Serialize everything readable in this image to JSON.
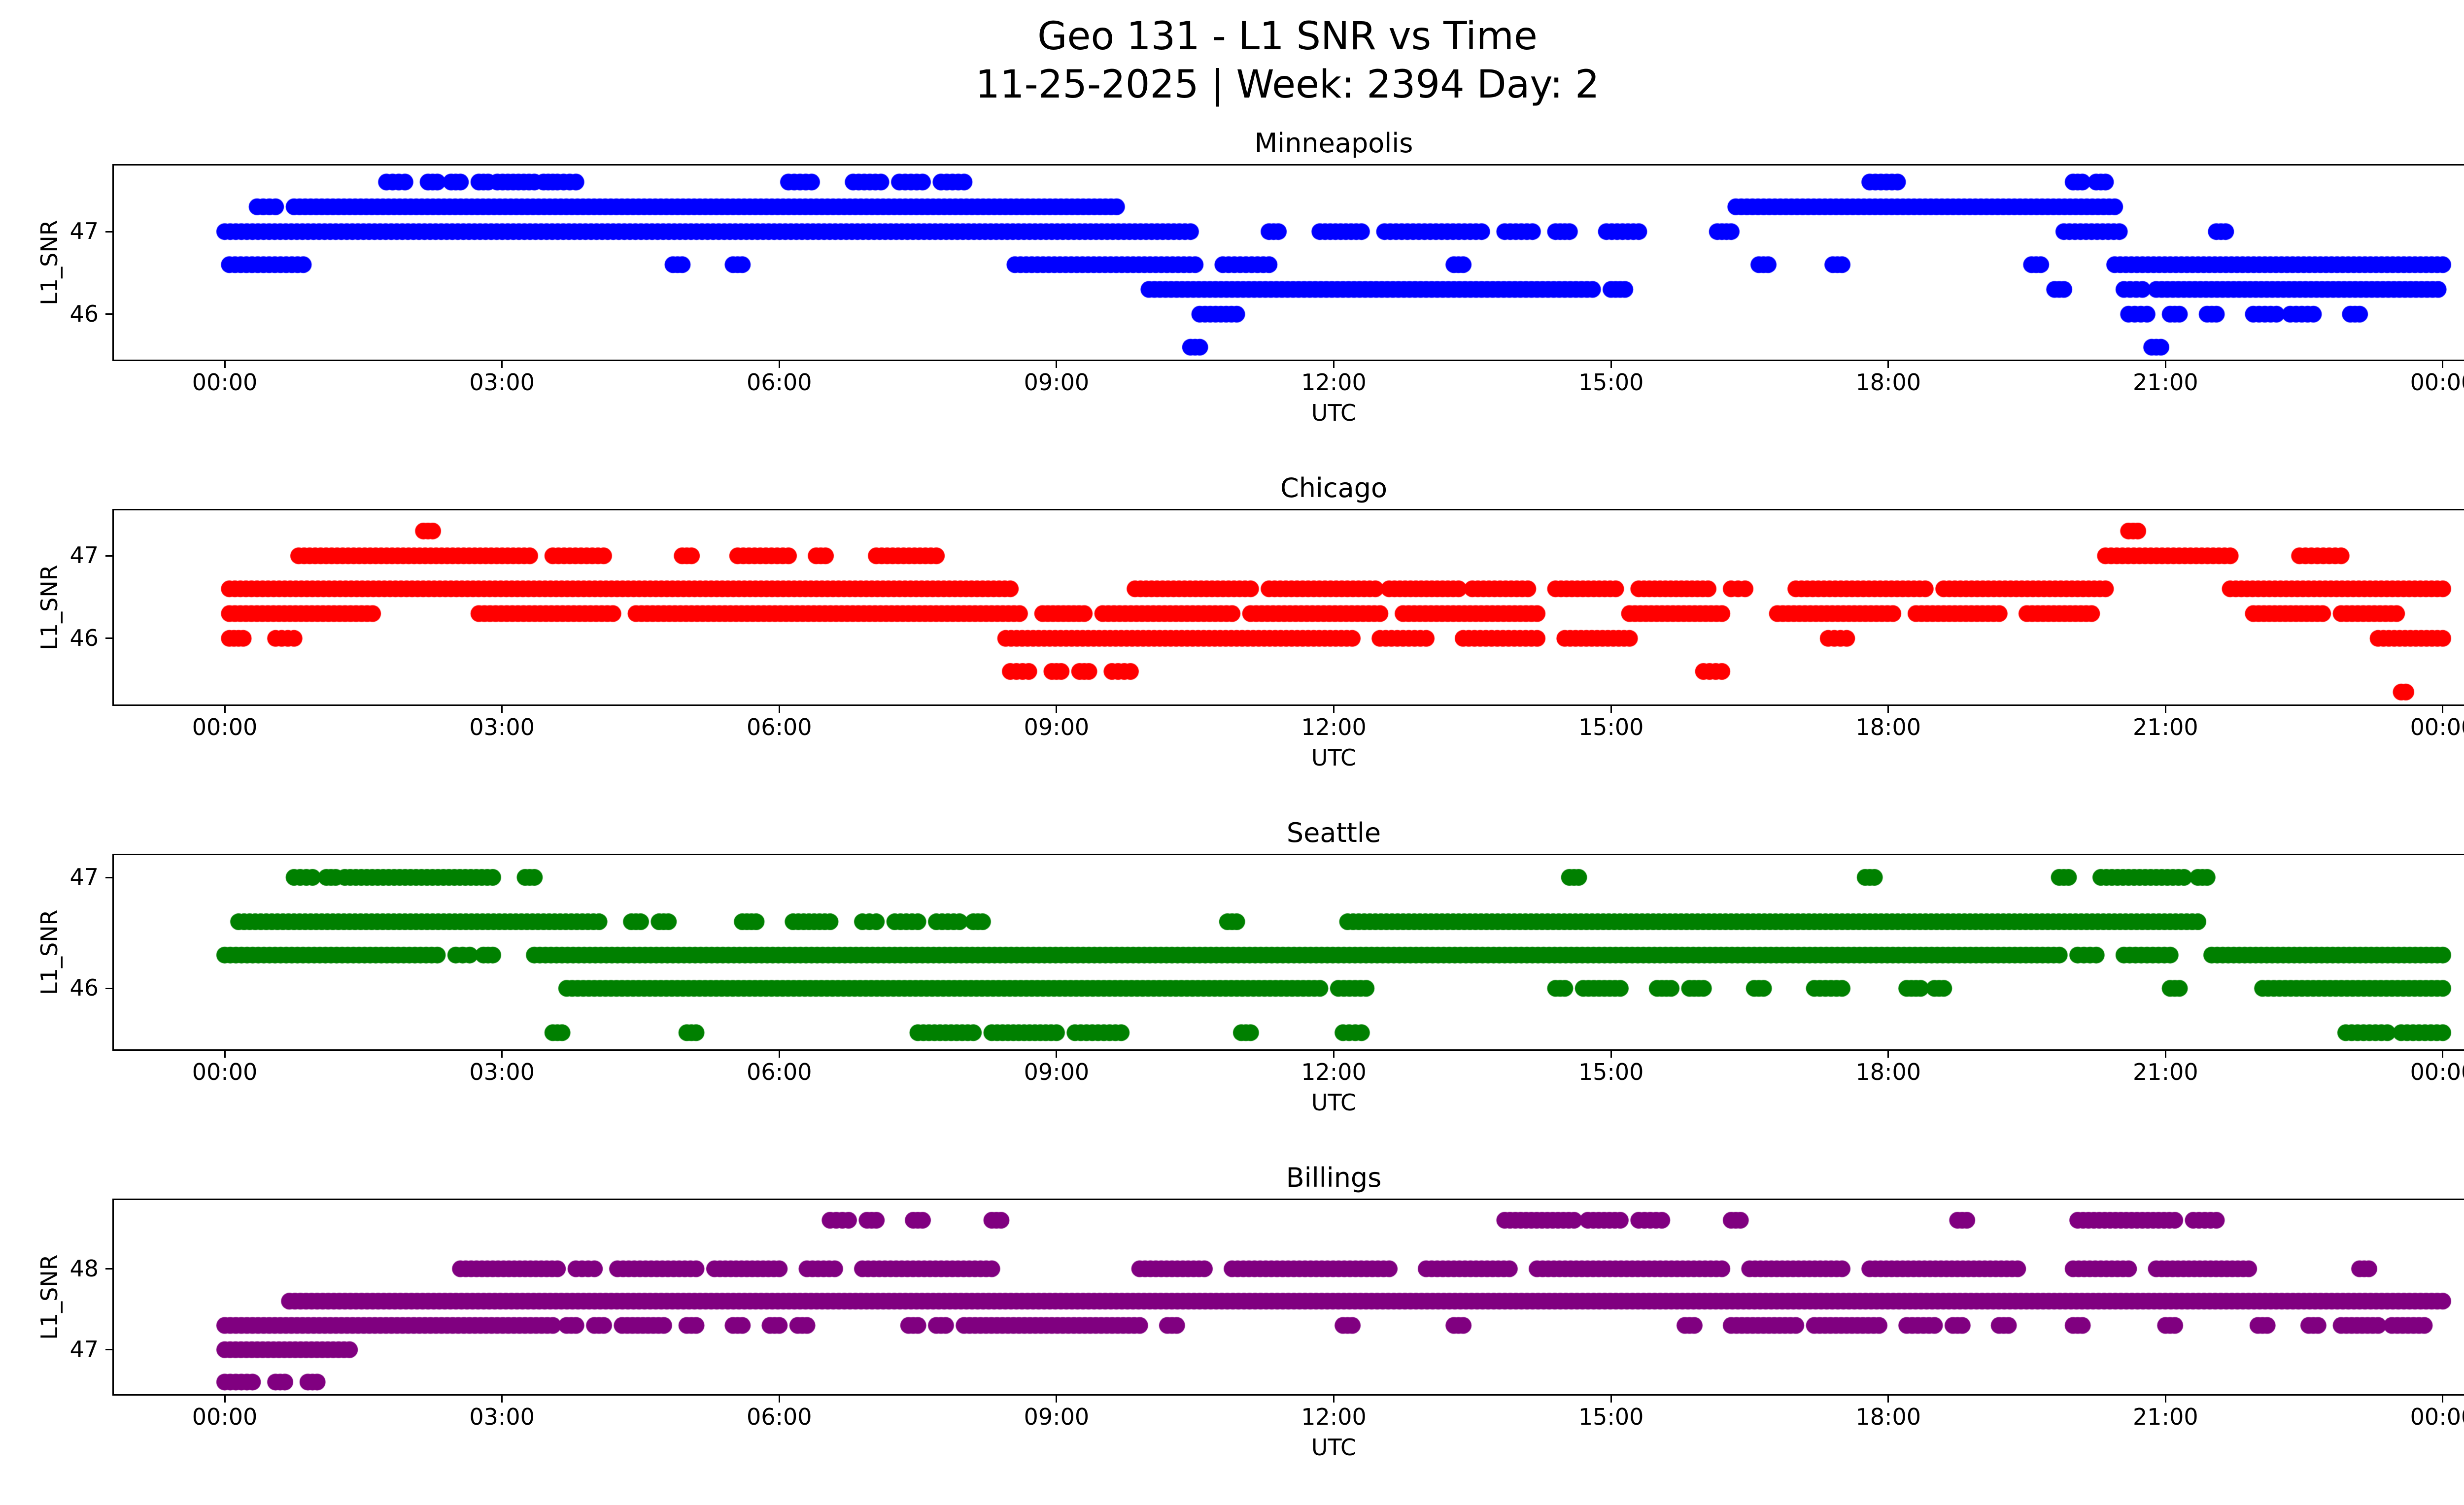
{
  "header": {
    "title_line1": "Geo 131 - L1 SNR vs Time",
    "title_line2": "11-25-2025 | Week: 2394 Day: 2"
  },
  "chart_data": [
    {
      "type": "scatter",
      "title": "Minneapolis",
      "color": "#0000ff",
      "xlabel": "UTC",
      "ylabel": "L1_SNR",
      "xlim": [
        -1.2,
        25.2
      ],
      "ylim": [
        45.45,
        47.8
      ],
      "x_tick_hours": [
        0,
        3,
        6,
        9,
        12,
        15,
        18,
        21,
        24
      ],
      "x_tick_labels": [
        "00:00",
        "03:00",
        "06:00",
        "09:00",
        "12:00",
        "15:00",
        "18:00",
        "21:00",
        "00:00"
      ],
      "y_ticks": [
        46,
        47
      ],
      "marker_radius_px": 17,
      "levels": [
        {
          "snr": 47.6,
          "segments": [
            [
              1.75,
              1.95
            ],
            [
              2.2,
              2.3
            ],
            [
              2.45,
              2.55
            ],
            [
              2.75,
              2.85
            ],
            [
              2.95,
              3.35
            ],
            [
              3.45,
              3.55
            ],
            [
              3.6,
              3.8
            ],
            [
              6.1,
              6.35
            ],
            [
              6.8,
              7.1
            ],
            [
              7.3,
              7.55
            ],
            [
              7.75,
              8.0
            ],
            [
              17.8,
              18.1
            ],
            [
              20.0,
              20.1
            ],
            [
              20.25,
              20.35
            ]
          ]
        },
        {
          "snr": 47.3,
          "segments": [
            [
              0.35,
              0.55
            ],
            [
              0.75,
              9.65
            ],
            [
              16.35,
              20.45
            ]
          ]
        },
        {
          "snr": 47.0,
          "segments": [
            [
              0.0,
              10.45
            ],
            [
              11.3,
              11.4
            ],
            [
              11.85,
              12.3
            ],
            [
              12.55,
              13.6
            ],
            [
              13.85,
              14.15
            ],
            [
              14.4,
              14.55
            ],
            [
              14.95,
              15.3
            ],
            [
              16.15,
              16.3
            ],
            [
              19.9,
              20.5
            ],
            [
              21.55,
              21.65
            ]
          ]
        },
        {
          "snr": 46.6,
          "segments": [
            [
              0.05,
              0.85
            ],
            [
              4.85,
              4.95
            ],
            [
              5.5,
              5.6
            ],
            [
              8.55,
              10.5
            ],
            [
              10.8,
              11.3
            ],
            [
              13.3,
              13.4
            ],
            [
              16.6,
              16.7
            ],
            [
              17.4,
              17.5
            ],
            [
              19.55,
              19.65
            ],
            [
              20.45,
              24.0
            ]
          ]
        },
        {
          "snr": 46.3,
          "segments": [
            [
              10.0,
              14.8
            ],
            [
              15.0,
              15.15
            ],
            [
              19.8,
              19.9
            ],
            [
              20.55,
              20.75
            ],
            [
              20.9,
              23.95
            ]
          ]
        },
        {
          "snr": 46.0,
          "segments": [
            [
              10.55,
              10.95
            ],
            [
              20.6,
              20.8
            ],
            [
              21.05,
              21.15
            ],
            [
              21.45,
              21.55
            ],
            [
              21.95,
              22.2
            ],
            [
              22.35,
              22.6
            ],
            [
              23.0,
              23.1
            ]
          ]
        },
        {
          "snr": 45.6,
          "segments": [
            [
              10.45,
              10.55
            ],
            [
              20.85,
              20.95
            ]
          ]
        }
      ]
    },
    {
      "type": "scatter",
      "title": "Chicago",
      "color": "#ff0000",
      "xlabel": "UTC",
      "ylabel": "L1_SNR",
      "xlim": [
        -1.2,
        25.2
      ],
      "ylim": [
        45.2,
        47.55
      ],
      "x_tick_hours": [
        0,
        3,
        6,
        9,
        12,
        15,
        18,
        21,
        24
      ],
      "x_tick_labels": [
        "00:00",
        "03:00",
        "06:00",
        "09:00",
        "12:00",
        "15:00",
        "18:00",
        "21:00",
        "00:00"
      ],
      "y_ticks": [
        46,
        47
      ],
      "marker_radius_px": 17,
      "levels": [
        {
          "snr": 47.3,
          "segments": [
            [
              2.15,
              2.25
            ],
            [
              20.6,
              20.7
            ]
          ]
        },
        {
          "snr": 47.0,
          "segments": [
            [
              0.8,
              3.3
            ],
            [
              3.55,
              4.1
            ],
            [
              4.95,
              5.05
            ],
            [
              5.55,
              6.1
            ],
            [
              6.4,
              6.5
            ],
            [
              7.05,
              7.7
            ],
            [
              20.35,
              21.7
            ],
            [
              22.45,
              22.9
            ]
          ]
        },
        {
          "snr": 46.6,
          "segments": [
            [
              0.05,
              8.5
            ],
            [
              9.85,
              11.1
            ],
            [
              11.3,
              12.45
            ],
            [
              12.6,
              13.35
            ],
            [
              13.5,
              14.1
            ],
            [
              14.4,
              15.05
            ],
            [
              15.3,
              16.05
            ],
            [
              16.3,
              16.45
            ],
            [
              17.0,
              18.4
            ],
            [
              18.6,
              20.35
            ],
            [
              21.7,
              24.0
            ]
          ]
        },
        {
          "snr": 46.3,
          "segments": [
            [
              0.05,
              1.6
            ],
            [
              2.75,
              4.2
            ],
            [
              4.45,
              8.6
            ],
            [
              8.85,
              9.3
            ],
            [
              9.5,
              10.9
            ],
            [
              11.1,
              12.5
            ],
            [
              12.75,
              14.2
            ],
            [
              15.2,
              16.2
            ],
            [
              16.8,
              18.05
            ],
            [
              18.3,
              19.2
            ],
            [
              19.5,
              20.2
            ],
            [
              21.95,
              22.7
            ],
            [
              22.9,
              23.5
            ]
          ]
        },
        {
          "snr": 46.0,
          "segments": [
            [
              0.05,
              0.2
            ],
            [
              0.55,
              0.75
            ],
            [
              8.45,
              12.2
            ],
            [
              12.5,
              13.0
            ],
            [
              13.4,
              14.2
            ],
            [
              14.5,
              15.2
            ],
            [
              17.35,
              17.55
            ],
            [
              23.3,
              24.0
            ]
          ]
        },
        {
          "snr": 45.6,
          "segments": [
            [
              8.5,
              8.7
            ],
            [
              8.95,
              9.05
            ],
            [
              9.25,
              9.35
            ],
            [
              9.6,
              9.8
            ],
            [
              16.0,
              16.2
            ]
          ]
        },
        {
          "snr": 45.35,
          "segments": [
            [
              23.55,
              23.6
            ]
          ]
        }
      ]
    },
    {
      "type": "scatter",
      "title": "Seattle",
      "color": "#008000",
      "xlabel": "UTC",
      "ylabel": "L1_SNR",
      "xlim": [
        -1.2,
        25.2
      ],
      "ylim": [
        45.45,
        47.2
      ],
      "x_tick_hours": [
        0,
        3,
        6,
        9,
        12,
        15,
        18,
        21,
        24
      ],
      "x_tick_labels": [
        "00:00",
        "03:00",
        "06:00",
        "09:00",
        "12:00",
        "15:00",
        "18:00",
        "21:00",
        "00:00"
      ],
      "y_ticks": [
        46,
        47
      ],
      "marker_radius_px": 17,
      "levels": [
        {
          "snr": 47.0,
          "segments": [
            [
              0.75,
              0.95
            ],
            [
              1.1,
              1.2
            ],
            [
              1.3,
              2.9
            ],
            [
              3.25,
              3.35
            ],
            [
              14.55,
              14.65
            ],
            [
              17.75,
              17.85
            ],
            [
              19.85,
              19.95
            ],
            [
              20.3,
              21.2
            ],
            [
              21.35,
              21.45
            ]
          ]
        },
        {
          "snr": 46.6,
          "segments": [
            [
              0.15,
              4.05
            ],
            [
              4.4,
              4.5
            ],
            [
              4.7,
              4.8
            ],
            [
              5.6,
              5.75
            ],
            [
              6.15,
              6.55
            ],
            [
              6.9,
              7.05
            ],
            [
              7.25,
              7.5
            ],
            [
              7.7,
              7.95
            ],
            [
              8.1,
              8.2
            ],
            [
              10.85,
              10.95
            ],
            [
              12.15,
              21.35
            ]
          ]
        },
        {
          "snr": 46.3,
          "segments": [
            [
              0.0,
              2.3
            ],
            [
              2.5,
              2.65
            ],
            [
              2.8,
              2.9
            ],
            [
              3.35,
              19.85
            ],
            [
              20.05,
              20.25
            ],
            [
              20.55,
              21.05
            ],
            [
              21.5,
              24.0
            ]
          ]
        },
        {
          "snr": 46.0,
          "segments": [
            [
              3.7,
              11.85
            ],
            [
              12.05,
              12.35
            ],
            [
              14.4,
              14.5
            ],
            [
              14.7,
              15.1
            ],
            [
              15.5,
              15.65
            ],
            [
              15.85,
              16.0
            ],
            [
              16.55,
              16.65
            ],
            [
              17.2,
              17.5
            ],
            [
              18.2,
              18.35
            ],
            [
              18.5,
              18.6
            ],
            [
              21.05,
              21.15
            ],
            [
              22.05,
              24.0
            ]
          ]
        },
        {
          "snr": 45.6,
          "segments": [
            [
              3.55,
              3.65
            ],
            [
              5.0,
              5.1
            ],
            [
              7.5,
              8.1
            ],
            [
              8.3,
              9.0
            ],
            [
              9.2,
              9.7
            ],
            [
              11.0,
              11.1
            ],
            [
              12.1,
              12.3
            ],
            [
              22.95,
              23.4
            ],
            [
              23.55,
              24.0
            ]
          ]
        }
      ]
    },
    {
      "type": "scatter",
      "title": "Billings",
      "color": "#800080",
      "xlabel": "UTC",
      "ylabel": "L1_SNR",
      "xlim": [
        -1.2,
        25.2
      ],
      "ylim": [
        46.45,
        48.85
      ],
      "x_tick_hours": [
        0,
        3,
        6,
        9,
        12,
        15,
        18,
        21,
        24
      ],
      "x_tick_labels": [
        "00:00",
        "03:00",
        "06:00",
        "09:00",
        "12:00",
        "15:00",
        "18:00",
        "21:00",
        "00:00"
      ],
      "y_ticks": [
        47,
        48
      ],
      "marker_radius_px": 17,
      "levels": [
        {
          "snr": 48.6,
          "segments": [
            [
              6.55,
              6.75
            ],
            [
              6.95,
              7.05
            ],
            [
              7.45,
              7.55
            ],
            [
              8.3,
              8.4
            ],
            [
              13.85,
              14.6
            ],
            [
              14.75,
              15.1
            ],
            [
              15.3,
              15.55
            ],
            [
              16.3,
              16.4
            ],
            [
              18.75,
              18.85
            ],
            [
              20.05,
              21.1
            ],
            [
              21.3,
              21.55
            ]
          ]
        },
        {
          "snr": 48.0,
          "segments": [
            [
              2.55,
              3.6
            ],
            [
              3.8,
              4.0
            ],
            [
              4.25,
              5.1
            ],
            [
              5.3,
              6.0
            ],
            [
              6.3,
              6.6
            ],
            [
              6.9,
              8.3
            ],
            [
              9.9,
              10.6
            ],
            [
              10.9,
              12.6
            ],
            [
              13.0,
              13.9
            ],
            [
              14.2,
              16.2
            ],
            [
              16.5,
              17.5
            ],
            [
              17.8,
              19.4
            ],
            [
              20.0,
              20.6
            ],
            [
              20.9,
              21.9
            ],
            [
              23.1,
              23.2
            ]
          ]
        },
        {
          "snr": 47.6,
          "segments": [
            [
              0.7,
              24.0
            ]
          ]
        },
        {
          "snr": 47.3,
          "segments": [
            [
              0.0,
              3.55
            ],
            [
              3.7,
              3.8
            ],
            [
              4.0,
              4.1
            ],
            [
              4.3,
              4.75
            ],
            [
              5.0,
              5.1
            ],
            [
              5.5,
              5.6
            ],
            [
              5.9,
              6.0
            ],
            [
              6.2,
              6.3
            ],
            [
              7.4,
              7.5
            ],
            [
              7.7,
              7.8
            ],
            [
              8.0,
              9.9
            ],
            [
              10.2,
              10.3
            ],
            [
              12.1,
              12.2
            ],
            [
              13.3,
              13.4
            ],
            [
              15.8,
              15.9
            ],
            [
              16.3,
              17.0
            ],
            [
              17.2,
              17.9
            ],
            [
              18.2,
              18.5
            ],
            [
              18.7,
              18.8
            ],
            [
              19.2,
              19.3
            ],
            [
              20.0,
              20.1
            ],
            [
              21.0,
              21.1
            ],
            [
              22.0,
              22.1
            ],
            [
              22.55,
              22.65
            ],
            [
              22.9,
              23.3
            ],
            [
              23.45,
              23.8
            ]
          ]
        },
        {
          "snr": 47.0,
          "segments": [
            [
              0.0,
              1.35
            ]
          ]
        },
        {
          "snr": 46.6,
          "segments": [
            [
              0.0,
              0.3
            ],
            [
              0.55,
              0.65
            ],
            [
              0.9,
              1.0
            ]
          ]
        }
      ]
    }
  ]
}
